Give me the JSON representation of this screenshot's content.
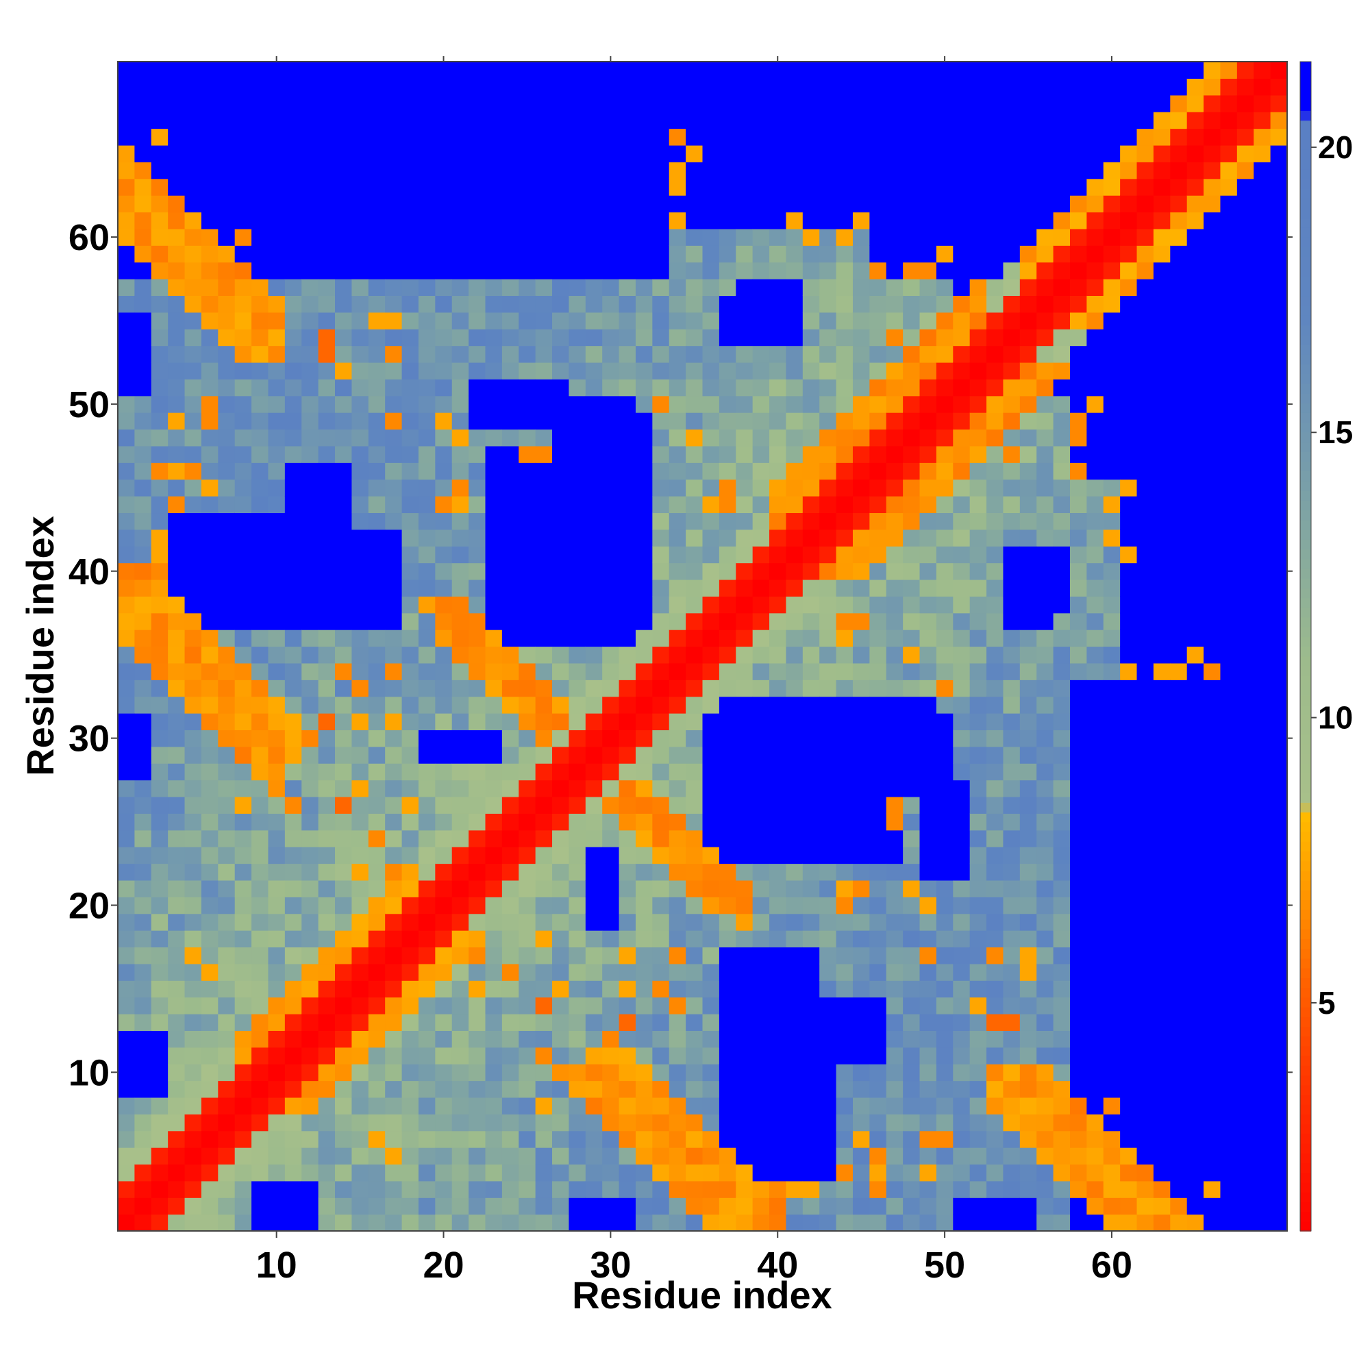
{
  "chart_data": {
    "type": "heatmap",
    "title": "",
    "xlabel": "Residue index",
    "ylabel": "Residue index",
    "n_residues": 70,
    "xlim": [
      0.5,
      70.5
    ],
    "ylim": [
      0.5,
      70.5
    ],
    "x_ticks": [
      10,
      20,
      30,
      40,
      50,
      60
    ],
    "y_ticks": [
      10,
      20,
      30,
      40,
      50,
      60
    ],
    "colorbar": {
      "ticks": [
        5,
        10,
        15,
        20
      ],
      "range": [
        1,
        21.5
      ],
      "stops": [
        {
          "value": 1,
          "color": "#ff0000"
        },
        {
          "value": 3.5,
          "color": "#ff3300"
        },
        {
          "value": 5.5,
          "color": "#ff6600"
        },
        {
          "value": 7.0,
          "color": "#ff9900"
        },
        {
          "value": 8.3,
          "color": "#ffbb00"
        },
        {
          "value": 8.5,
          "color": "#a8c08a"
        },
        {
          "value": 11,
          "color": "#9dbb8c"
        },
        {
          "value": 14,
          "color": "#7aa0a8"
        },
        {
          "value": 17,
          "color": "#5f86c0"
        },
        {
          "value": 20.5,
          "color": "#5a7fc4"
        },
        {
          "value": 20.6,
          "color": "#0000ff"
        },
        {
          "value": 21.5,
          "color": "#0000ff"
        }
      ]
    },
    "blue_regions": [
      [
        1,
        20,
        61,
        70
      ],
      [
        32,
        50,
        61,
        70
      ],
      [
        51,
        70,
        52,
        58
      ],
      [
        58,
        70,
        46,
        70
      ],
      [
        8,
        17,
        37,
        42
      ],
      [
        27,
        32,
        37,
        49
      ],
      [
        11,
        14,
        44,
        46
      ],
      [
        22,
        27,
        49,
        51
      ],
      [
        36,
        47,
        23,
        32
      ],
      [
        58,
        70,
        1,
        33
      ],
      [
        54,
        56,
        37,
        41
      ],
      [
        37,
        43,
        4,
        12
      ],
      [
        1,
        3,
        9,
        12
      ],
      [
        37,
        40,
        1,
        2
      ],
      [
        51,
        55,
        1,
        2
      ],
      [
        28,
        30,
        1,
        2
      ],
      [
        10,
        12,
        1,
        2
      ],
      [
        38,
        41,
        54,
        57
      ],
      [
        19,
        23,
        29,
        30
      ],
      [
        1,
        2,
        30,
        31
      ],
      [
        1,
        2,
        53,
        55
      ],
      [
        43,
        44,
        13,
        14
      ],
      [
        29,
        30,
        19,
        23
      ],
      [
        48,
        50,
        27,
        31
      ],
      [
        59,
        63,
        10,
        12
      ],
      [
        62,
        68,
        13,
        15
      ]
    ],
    "parallel_bands": [
      {
        "offset": 3,
        "half_width": 1.2,
        "from": 8,
        "to": 18,
        "value": 6.5
      },
      {
        "offset": 4,
        "half_width": 1.0,
        "from": 40,
        "to": 52,
        "value": 6.0
      },
      {
        "offset": 3,
        "half_width": 1.0,
        "from": 55,
        "to": 67,
        "value": 6.5
      }
    ],
    "antiparallel_bands": [
      {
        "sum": 65,
        "half_width": 1.0,
        "from_x": 1,
        "to_x": 10,
        "value": 6.0
      },
      {
        "sum": 38,
        "half_width": 1.0,
        "from_x": 1,
        "to_x": 10,
        "value": 6.0
      },
      {
        "sum": 57,
        "half_width": 1.0,
        "from_x": 20,
        "to_x": 28,
        "value": 6.0
      },
      {
        "sum": 58,
        "half_width": 1.0,
        "from_x": 28,
        "to_x": 38,
        "value": 6.0
      },
      {
        "sum": 41,
        "half_width": 1.0,
        "from_x": 30,
        "to_x": 40,
        "value": 6.0
      },
      {
        "sum": 62,
        "half_width": 1.0,
        "from_x": 53,
        "to_x": 62,
        "value": 6.0
      }
    ],
    "scattered_contacts": [
      [
        13,
        53,
        5.5
      ],
      [
        17,
        53,
        7.5
      ],
      [
        16,
        55,
        7.5
      ],
      [
        4,
        49,
        7.5
      ],
      [
        6,
        49,
        6.5
      ],
      [
        20,
        44,
        6.5
      ],
      [
        21,
        44,
        7.5
      ],
      [
        17,
        49,
        6.5
      ],
      [
        20,
        49,
        7.5
      ],
      [
        36,
        44,
        7.5
      ],
      [
        37,
        44,
        6.5
      ],
      [
        46,
        58,
        6.5
      ],
      [
        48,
        58,
        6.5
      ],
      [
        49,
        58,
        6.5
      ],
      [
        50,
        59,
        7.5
      ],
      [
        34,
        64,
        7.5
      ],
      [
        34,
        66,
        6.5
      ],
      [
        54,
        47,
        6.5
      ],
      [
        54,
        49,
        7.5
      ],
      [
        58,
        49,
        6.5
      ],
      [
        60,
        44,
        7.5
      ],
      [
        60,
        42,
        7.5
      ],
      [
        45,
        37,
        6.5
      ],
      [
        48,
        35,
        7.5
      ],
      [
        45,
        21,
        6.5
      ],
      [
        48,
        21,
        7.5
      ],
      [
        53,
        17,
        6.5
      ],
      [
        55,
        17,
        7.5
      ],
      [
        52,
        14,
        7.5
      ],
      [
        54,
        13,
        5.5
      ],
      [
        46,
        5,
        6.5
      ],
      [
        45,
        6,
        7.5
      ],
      [
        50,
        6,
        6.5
      ],
      [
        24,
        16,
        6.5
      ],
      [
        27,
        15,
        7.5
      ],
      [
        31,
        15,
        7.5
      ],
      [
        33,
        15,
        6.5
      ],
      [
        27,
        10,
        7.5
      ],
      [
        29,
        10,
        7.5
      ],
      [
        31,
        10,
        7.5
      ],
      [
        8,
        26,
        7.5
      ],
      [
        11,
        26,
        6.5
      ],
      [
        14,
        26,
        5.5
      ],
      [
        18,
        26,
        7.5
      ],
      [
        11,
        29,
        7.5
      ],
      [
        13,
        31,
        5.5
      ],
      [
        17,
        31,
        7.5
      ],
      [
        15,
        22,
        7.5
      ],
      [
        17,
        22,
        6.5
      ],
      [
        5,
        17,
        7.5
      ],
      [
        16,
        6,
        7.5
      ],
      [
        65,
        35,
        7.5
      ],
      [
        61,
        34,
        7.5
      ],
      [
        63,
        34,
        7.5
      ],
      [
        66,
        34,
        7.5
      ],
      [
        36,
        2,
        6.5
      ],
      [
        40,
        3,
        6.5
      ],
      [
        41,
        3,
        7.5
      ],
      [
        42,
        3,
        7.5
      ],
      [
        44,
        4,
        6.5
      ],
      [
        46,
        3,
        6.5
      ],
      [
        49,
        4,
        7.5
      ],
      [
        46,
        4,
        7.5
      ],
      [
        63,
        3,
        6.5
      ],
      [
        66,
        3,
        7.5
      ],
      [
        60,
        8,
        6.5
      ],
      [
        58,
        8,
        7.5
      ],
      [
        34,
        64,
        7.5
      ],
      [
        41,
        61,
        7.5
      ],
      [
        45,
        61,
        7.5
      ],
      [
        25,
        47,
        6.5
      ],
      [
        26,
        47,
        6.5
      ],
      [
        4,
        46,
        7.5
      ],
      [
        33,
        50,
        6.5
      ],
      [
        14,
        34,
        6.5
      ],
      [
        17,
        34,
        6.5
      ],
      [
        23,
        35,
        7.5
      ],
      [
        22,
        36,
        6.5
      ]
    ]
  }
}
